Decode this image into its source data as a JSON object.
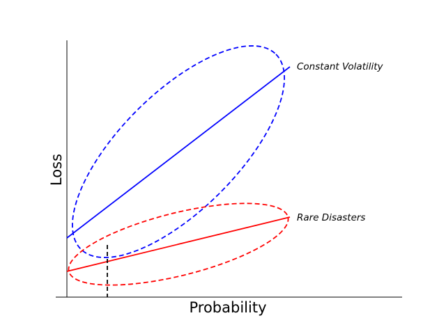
{
  "chart_data": {
    "type": "line",
    "xlabel": "Probability",
    "ylabel": "Loss",
    "series": [
      {
        "name": "Constant Volatility",
        "color": "#0000ff"
      },
      {
        "name": "Rare Disasters",
        "color": "#ff0000"
      }
    ]
  }
}
